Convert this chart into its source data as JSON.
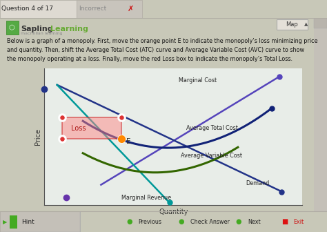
{
  "bg_outer": "#c8c8b8",
  "bg_header": "#d4d0c8",
  "bg_content": "#f0eeea",
  "bg_chart": "#e8ede8",
  "header_text": "Question 4 of 17",
  "incorrect_text": "Incorrect",
  "xlabel": "Quantity",
  "ylabel": "Price",
  "map_text": "Map",
  "hint_text": "Hint",
  "instructions": "Below is a graph of a monopoly. First, move the orange point E to indicate the monopoly’s loss minimizing price\nand quantity. Then, shift the Average Total Cost (ATC) curve and Average Variable Cost (AVC) curve to show\nthe monopoly operating at a loss. Finally, move the red Loss box to indicate the monopoly’s Total Loss.",
  "curve_mc_color": "#5544bb",
  "curve_demand_color": "#223388",
  "curve_mr_color": "#009999",
  "curve_atc_color": "#112277",
  "curve_avc_color": "#336600",
  "loss_box_color": "#ff8888",
  "loss_box_edge": "#cc2222",
  "pt_loss_corner": "#dd3333",
  "pt_orange": "#ff8800",
  "pt_left_axis": "#223388",
  "pt_purple": "#6633aa",
  "pt_teal_bottom": "#009999",
  "pt_demand_end": "#223388",
  "pt_mc_end": "#5544bb",
  "pt_atc_end": "#112277",
  "nav_buttons": [
    "Previous",
    "Check Answer",
    "Next",
    "Exit"
  ],
  "label_mc": "Marginal Cost",
  "label_demand": "Demand",
  "label_mr": "Marginal Revenue",
  "label_atc": "Average Total Cost",
  "label_avc": "Average Variable Cost",
  "label_loss": "Loss",
  "label_e": "E"
}
